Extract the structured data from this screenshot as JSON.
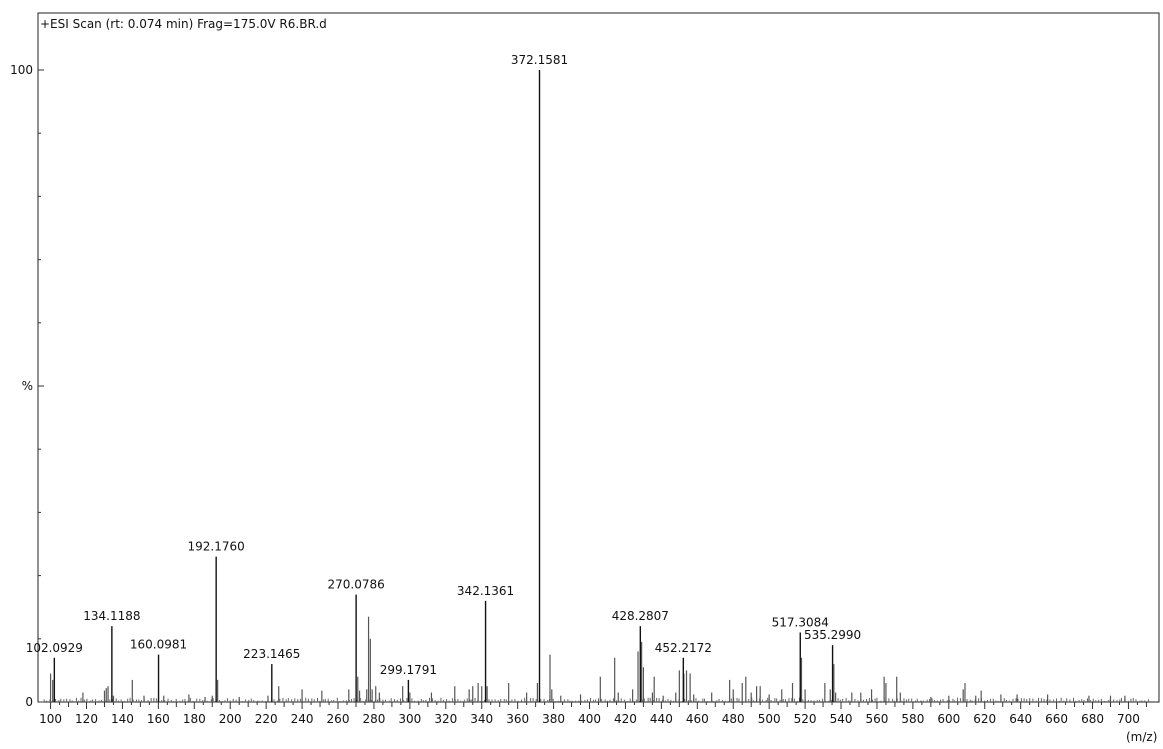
{
  "chart_data": {
    "type": "bar",
    "title": "+ESI Scan (rt: 0.074 min) Frag=175.0V R6.BR.d",
    "xlabel": "(m/z)",
    "ylabel": "%",
    "xlim": [
      93,
      717
    ],
    "ylim": [
      0,
      100
    ],
    "x_ticks": [
      100,
      120,
      140,
      160,
      180,
      200,
      220,
      240,
      260,
      280,
      300,
      320,
      340,
      360,
      380,
      400,
      420,
      440,
      460,
      480,
      500,
      520,
      540,
      560,
      580,
      600,
      620,
      640,
      660,
      680,
      700
    ],
    "y_tick_labels": [
      {
        "value": 0,
        "label": "0"
      },
      {
        "value": 50,
        "label": "%"
      },
      {
        "value": 100,
        "label": "100"
      }
    ],
    "grid": false,
    "labeled_peaks": [
      {
        "mz": 102.0929,
        "intensity": 7,
        "label": "102.0929"
      },
      {
        "mz": 134.1188,
        "intensity": 12,
        "label": "134.1188"
      },
      {
        "mz": 160.0981,
        "intensity": 7.5,
        "label": "160.0981"
      },
      {
        "mz": 192.176,
        "intensity": 23,
        "label": "192.1760"
      },
      {
        "mz": 223.1465,
        "intensity": 6,
        "label": "223.1465"
      },
      {
        "mz": 270.0786,
        "intensity": 17,
        "label": "270.0786"
      },
      {
        "mz": 299.1791,
        "intensity": 3.5,
        "label": "299.1791"
      },
      {
        "mz": 342.1361,
        "intensity": 16,
        "label": "342.1361"
      },
      {
        "mz": 372.1581,
        "intensity": 100,
        "label": "372.1581"
      },
      {
        "mz": 428.2807,
        "intensity": 12,
        "label": "428.2807"
      },
      {
        "mz": 452.2172,
        "intensity": 7,
        "label": "452.2172"
      },
      {
        "mz": 517.3084,
        "intensity": 11,
        "label": "517.3084"
      },
      {
        "mz": 535.299,
        "intensity": 9,
        "label": "535.2990"
      }
    ],
    "minor_peaks": [
      [
        100,
        4.5
      ],
      [
        101.2,
        3.5
      ],
      [
        118,
        1.5
      ],
      [
        130,
        1.8
      ],
      [
        131,
        2.2
      ],
      [
        132,
        2.5
      ],
      [
        135,
        1
      ],
      [
        145.5,
        3.5
      ],
      [
        152,
        1
      ],
      [
        163,
        1
      ],
      [
        177,
        1.2
      ],
      [
        186,
        0.8
      ],
      [
        190,
        1
      ],
      [
        193,
        3.5
      ],
      [
        205,
        0.8
      ],
      [
        221,
        1
      ],
      [
        227,
        2.5
      ],
      [
        240,
        2
      ],
      [
        251,
        1.8
      ],
      [
        266,
        2
      ],
      [
        271,
        4
      ],
      [
        272,
        1.8
      ],
      [
        276,
        2
      ],
      [
        277,
        13.5
      ],
      [
        278,
        10
      ],
      [
        279,
        2
      ],
      [
        281,
        2.5
      ],
      [
        283,
        1.5
      ],
      [
        296,
        2.5
      ],
      [
        300,
        1.5
      ],
      [
        312,
        1.5
      ],
      [
        325,
        2.5
      ],
      [
        333,
        2
      ],
      [
        335,
        2.5
      ],
      [
        338,
        3
      ],
      [
        340,
        2.5
      ],
      [
        343,
        2.5
      ],
      [
        355,
        3
      ],
      [
        365,
        1.5
      ],
      [
        371,
        3
      ],
      [
        378,
        7.5
      ],
      [
        379,
        2
      ],
      [
        384,
        1
      ],
      [
        395,
        1.2
      ],
      [
        406,
        4
      ],
      [
        414,
        7
      ],
      [
        416,
        1.5
      ],
      [
        424,
        2
      ],
      [
        427,
        8
      ],
      [
        429,
        9.5
      ],
      [
        430,
        5.5
      ],
      [
        435,
        1.5
      ],
      [
        436,
        4
      ],
      [
        441,
        1
      ],
      [
        448,
        1.5
      ],
      [
        450,
        5
      ],
      [
        452.5,
        4.5
      ],
      [
        454,
        5
      ],
      [
        456,
        4.5
      ],
      [
        458,
        1.2
      ],
      [
        468,
        1.5
      ],
      [
        478,
        3.5
      ],
      [
        480,
        2
      ],
      [
        485,
        3
      ],
      [
        487,
        4
      ],
      [
        490,
        1.5
      ],
      [
        493,
        2.5
      ],
      [
        495,
        2.5
      ],
      [
        500,
        1.2
      ],
      [
        507,
        2
      ],
      [
        513,
        3
      ],
      [
        518,
        7
      ],
      [
        520,
        2
      ],
      [
        531,
        3
      ],
      [
        534,
        2
      ],
      [
        536,
        6
      ],
      [
        537,
        1.5
      ],
      [
        546,
        1.5
      ],
      [
        551,
        1.5
      ],
      [
        557,
        2
      ],
      [
        564,
        4
      ],
      [
        565,
        3
      ],
      [
        571,
        4
      ],
      [
        573,
        1.5
      ],
      [
        590,
        0.8
      ],
      [
        600,
        1
      ],
      [
        608,
        2
      ],
      [
        609,
        3
      ],
      [
        615,
        1
      ],
      [
        618,
        1.8
      ],
      [
        629,
        1.2
      ],
      [
        638,
        1.2
      ],
      [
        655,
        1.2
      ],
      [
        678,
        1
      ],
      [
        690,
        1
      ],
      [
        698,
        1
      ]
    ]
  }
}
